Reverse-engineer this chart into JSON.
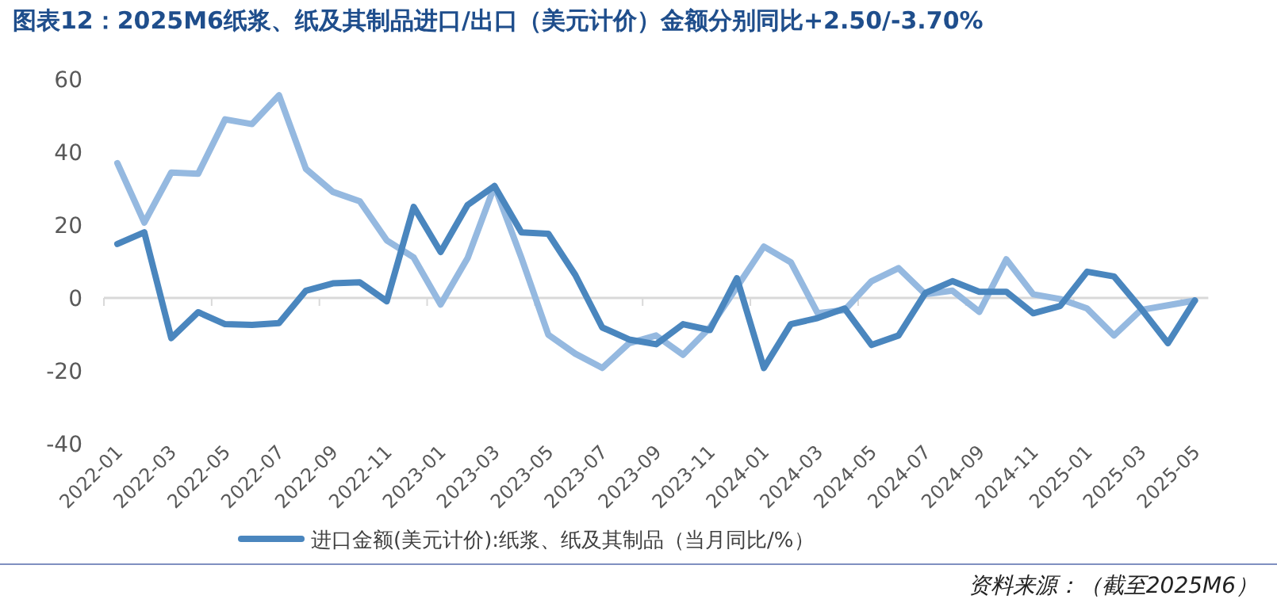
{
  "chart_data": {
    "type": "line",
    "title": "图表12：2025M6纸浆、纸及其制品进口/出口（美元计价）金额分别同比+2.50/-3.70%",
    "categories": [
      "2022-01",
      null,
      "2022-03",
      null,
      "2022-05",
      null,
      "2022-07",
      null,
      "2022-09",
      null,
      "2022-11",
      null,
      "2023-01",
      null,
      "2023-03",
      null,
      "2023-05",
      null,
      "2023-07",
      null,
      "2023-09",
      null,
      "2023-11",
      null,
      "2024-01",
      null,
      "2024-03",
      null,
      "2024-05",
      null,
      "2024-07",
      null,
      "2024-09",
      null,
      "2024-11",
      null,
      "2025-01",
      null,
      "2025-03",
      null,
      "2025-05"
    ],
    "series": [
      {
        "name": "进口金额(美元计价):纸浆、纸及其制品（当月同比/%）",
        "color": "#4a86be",
        "values": [
          14.8,
          18.0,
          -11,
          -3.9,
          -7.2,
          -7.4,
          -6.9,
          2.0,
          4.0,
          4.3,
          -0.9,
          25.0,
          12.6,
          25.5,
          30.7,
          18.0,
          17.6,
          6.3,
          -8.1,
          -11.4,
          -12.7,
          -7.2,
          -8.8,
          5.4,
          -19.2,
          -7.2,
          -5.5,
          -2.9,
          -12.9,
          -10.3,
          1.4,
          4.6,
          1.7,
          1.7,
          -4.2,
          -2.2,
          7.2,
          5.9,
          -2.9,
          -12.4,
          -0.7
        ]
      },
      {
        "color": "#95b9e0",
        "values": [
          37.0,
          20.7,
          34.4,
          34.1,
          49.0,
          47.7,
          55.6,
          35.4,
          29.1,
          26.5,
          15.8,
          11.1,
          -1.8,
          10.9,
          30.7,
          11,
          -10.1,
          -15.3,
          -19.2,
          -12.4,
          -10.3,
          -15.6,
          -8.1,
          3.0,
          14.1,
          9.8,
          -4.2,
          -3.3,
          4.6,
          8.2,
          1.0,
          2.0,
          -3.8,
          10.6,
          1.0,
          -0.3,
          -2.9,
          -10.3,
          -3.3,
          -2.0,
          -0.7
        ]
      }
    ],
    "ylim": [
      -40,
      60
    ],
    "yticks": [
      -40,
      -20,
      0,
      20,
      40,
      60
    ],
    "legend": "bottom",
    "annotations": [
      "资料来源：（截至2025M6）"
    ]
  }
}
